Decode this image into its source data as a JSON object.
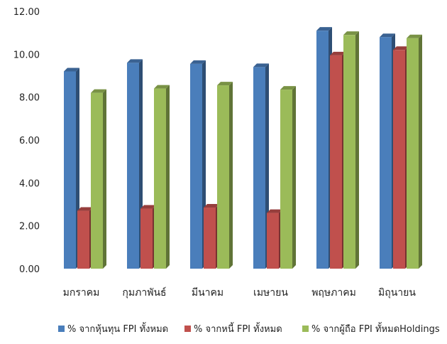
{
  "chart_data": {
    "type": "bar",
    "style": "3d-clustered-column",
    "title": "",
    "xlabel": "",
    "ylabel": "",
    "ylim": [
      0,
      12
    ],
    "yticks": [
      "0.00",
      "2.00",
      "4.00",
      "6.00",
      "8.00",
      "10.00",
      "12.00"
    ],
    "grid": false,
    "legend_position": "bottom",
    "categories": [
      "มกราคม",
      "กุมภาพันธ์",
      "มีนาคม",
      "เมษายน",
      "พฤษภาคม",
      "มิถุนายน"
    ],
    "series": [
      {
        "name": "% จากหุ้นทุน FPI ทั้งหมด",
        "color": "#4a7ebb",
        "values": [
          9.2,
          9.6,
          9.55,
          9.4,
          11.1,
          10.8
        ]
      },
      {
        "name": "% จากหนี้ FPI ทั้งหมด",
        "color": "#c0504d",
        "values": [
          2.7,
          2.8,
          2.85,
          2.6,
          9.95,
          10.2
        ]
      },
      {
        "name": "% จากผู้ถือ FPI  ทั้หมดHoldings",
        "color": "#9bbb59",
        "values": [
          8.2,
          8.4,
          8.55,
          8.35,
          10.9,
          10.75
        ]
      }
    ]
  }
}
